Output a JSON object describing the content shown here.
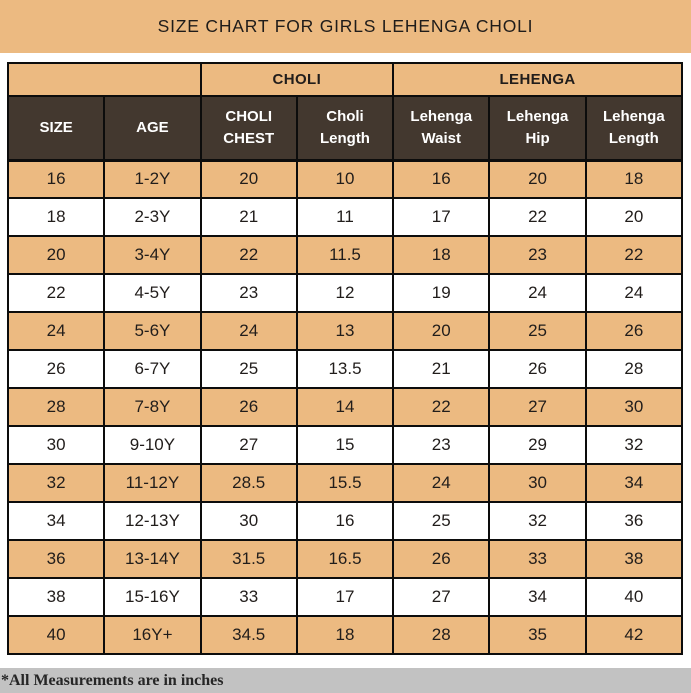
{
  "title": "SIZE CHART FOR GIRLS LEHENGA CHOLI",
  "table": {
    "group_headers": [
      {
        "label": ""
      },
      {
        "label": "CHOLI"
      },
      {
        "label": "LEHENGA"
      }
    ],
    "columns": [
      "SIZE",
      "AGE",
      "CHOLI CHEST",
      "Choli Length",
      "Lehenga Waist",
      "Lehenga Hip",
      "Lehenga Length"
    ],
    "rows": [
      [
        "16",
        "1-2Y",
        "20",
        "10",
        "16",
        "20",
        "18"
      ],
      [
        "18",
        "2-3Y",
        "21",
        "11",
        "17",
        "22",
        "20"
      ],
      [
        "20",
        "3-4Y",
        "22",
        "11.5",
        "18",
        "23",
        "22"
      ],
      [
        "22",
        "4-5Y",
        "23",
        "12",
        "19",
        "24",
        "24"
      ],
      [
        "24",
        "5-6Y",
        "24",
        "13",
        "20",
        "25",
        "26"
      ],
      [
        "26",
        "6-7Y",
        "25",
        "13.5",
        "21",
        "26",
        "28"
      ],
      [
        "28",
        "7-8Y",
        "26",
        "14",
        "22",
        "27",
        "30"
      ],
      [
        "30",
        "9-10Y",
        "27",
        "15",
        "23",
        "29",
        "32"
      ],
      [
        "32",
        "11-12Y",
        "28.5",
        "15.5",
        "24",
        "30",
        "34"
      ],
      [
        "34",
        "12-13Y",
        "30",
        "16",
        "25",
        "32",
        "36"
      ],
      [
        "36",
        "13-14Y",
        "31.5",
        "16.5",
        "26",
        "33",
        "38"
      ],
      [
        "38",
        "15-16Y",
        "33",
        "17",
        "27",
        "34",
        "40"
      ],
      [
        "40",
        "16Y+",
        "34.5",
        "18",
        "28",
        "35",
        "42"
      ]
    ]
  },
  "footnote": "*All Measurements are in inches",
  "colors": {
    "band_bg": "#ecba81",
    "header_bg": "#43382f",
    "header_text": "#ffffff",
    "cell_text": "#211d1b",
    "border": "#0c0c0c",
    "footer_bg": "#c2c2c2",
    "footer_text": "#262626",
    "title_text": "#1f1c1a"
  }
}
